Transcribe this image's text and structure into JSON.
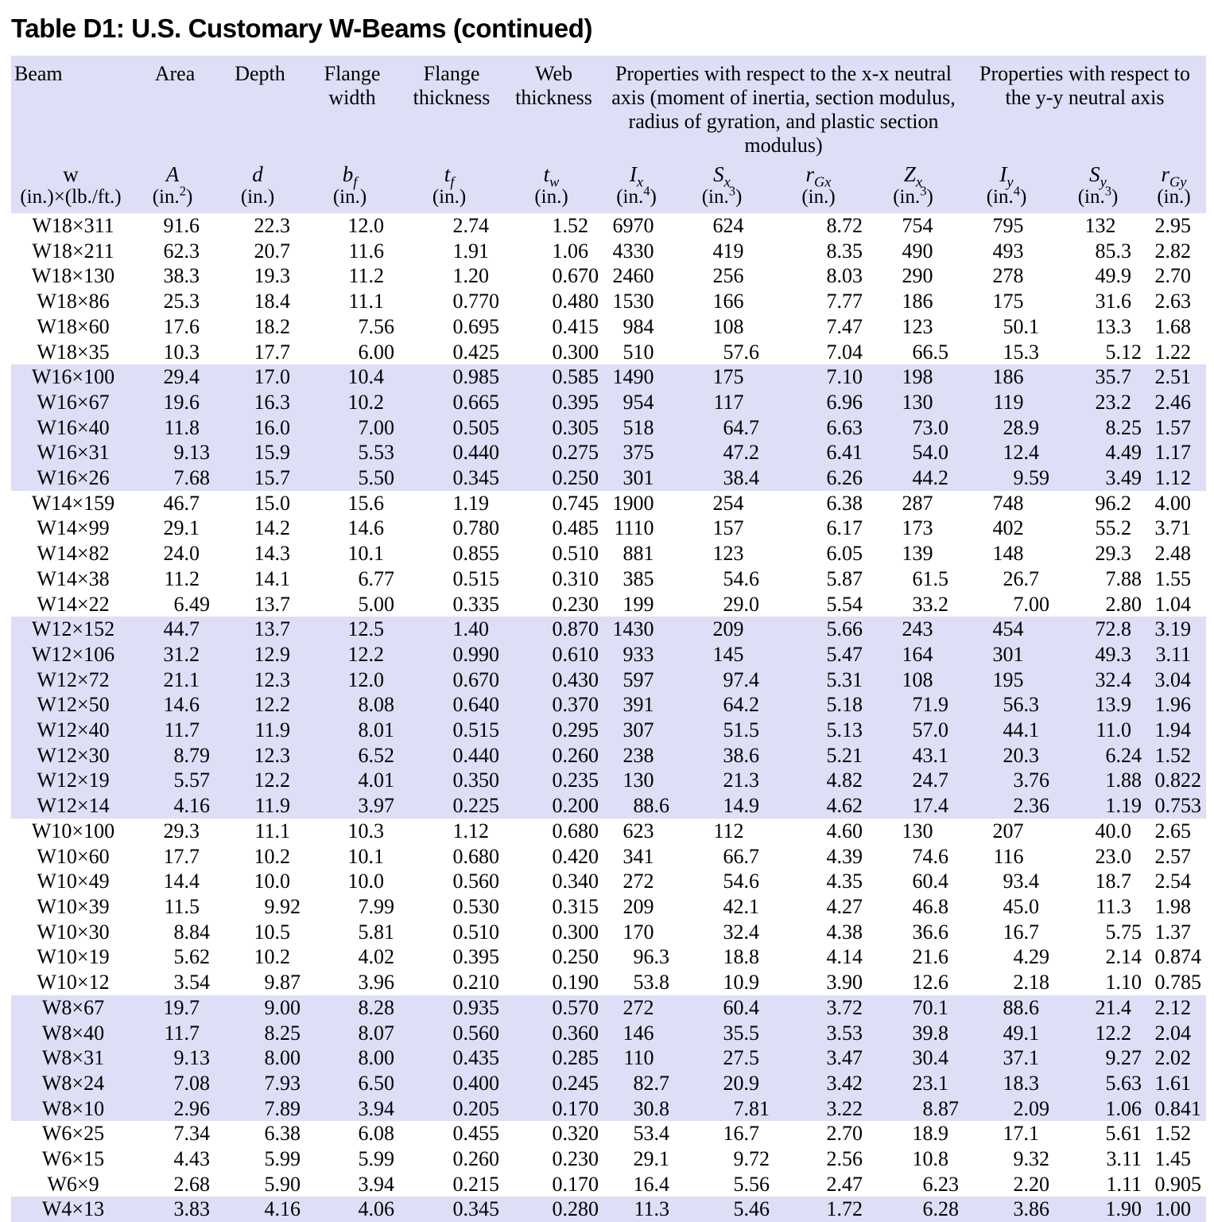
{
  "title": "Table D1: U.S. Customary W-Beams (continued)",
  "colors": {
    "band": "#dedef6",
    "text": "#000000",
    "page_bg": "#ffffff"
  },
  "table": {
    "group_headers": {
      "xx": "Properties with respect to the x-x neutral axis (moment of inertia, section modulus, radius of gyration, and plastic section modulus)",
      "yy": "Properties with respect to the y-y neutral axis"
    },
    "columns": [
      {
        "label": "Beam",
        "sym": "w",
        "italic": false,
        "sub": "",
        "unit_pre": "(in.)×(lb./ft.)",
        "unit_sup": "",
        "unit_post": ""
      },
      {
        "label": "Area",
        "sym": "A",
        "italic": true,
        "sub": "",
        "unit_pre": "(in.",
        "unit_sup": "2",
        "unit_post": ")"
      },
      {
        "label": "Depth",
        "sym": "d",
        "italic": true,
        "sub": "",
        "unit_pre": "(in.)",
        "unit_sup": "",
        "unit_post": ""
      },
      {
        "label": "Flange width",
        "sym": "b",
        "italic": true,
        "sub": "f",
        "unit_pre": "(in.)",
        "unit_sup": "",
        "unit_post": ""
      },
      {
        "label": "Flange thickness",
        "sym": "t",
        "italic": true,
        "sub": "f",
        "unit_pre": "(in.)",
        "unit_sup": "",
        "unit_post": ""
      },
      {
        "label": "Web thickness",
        "sym": "t",
        "italic": true,
        "sub": "w",
        "unit_pre": "(in.)",
        "unit_sup": "",
        "unit_post": ""
      },
      {
        "label": "",
        "sym": "I",
        "italic": true,
        "sub": "x",
        "unit_pre": "(in.",
        "unit_sup": "4",
        "unit_post": ")"
      },
      {
        "label": "",
        "sym": "S",
        "italic": true,
        "sub": "x",
        "unit_pre": "(in.",
        "unit_sup": "3",
        "unit_post": ")"
      },
      {
        "label": "",
        "sym": "r",
        "italic": true,
        "sub": "Gx",
        "unit_pre": "(in.)",
        "unit_sup": "",
        "unit_post": ""
      },
      {
        "label": "",
        "sym": "Z",
        "italic": true,
        "sub": "x",
        "unit_pre": "(in.",
        "unit_sup": "3",
        "unit_post": ")"
      },
      {
        "label": "",
        "sym": "I",
        "italic": true,
        "sub": "y",
        "unit_pre": "(in.",
        "unit_sup": "4",
        "unit_post": ")"
      },
      {
        "label": "",
        "sym": "S",
        "italic": true,
        "sub": "y",
        "unit_pre": "(in.",
        "unit_sup": "3",
        "unit_post": ")"
      },
      {
        "label": "",
        "sym": "r",
        "italic": true,
        "sub": "Gy",
        "unit_pre": "(in.)",
        "unit_sup": "",
        "unit_post": ""
      }
    ],
    "shaded_prefixes": [
      "W16",
      "W12",
      "W8",
      "W4"
    ],
    "rows": [
      [
        "W18×311",
        "91.6",
        "22.3",
        "12.0",
        "2.74",
        "1.52",
        "6970",
        "624",
        "8.72",
        "754",
        "795",
        "132",
        "2.95"
      ],
      [
        "W18×211",
        "62.3",
        "20.7",
        "11.6",
        "1.91",
        "1.06",
        "4330",
        "419",
        "8.35",
        "490",
        "493",
        "85.3",
        "2.82"
      ],
      [
        "W18×130",
        "38.3",
        "19.3",
        "11.2",
        "1.20",
        "0.670",
        "2460",
        "256",
        "8.03",
        "290",
        "278",
        "49.9",
        "2.70"
      ],
      [
        "W18×86",
        "25.3",
        "18.4",
        "11.1",
        "0.770",
        "0.480",
        "1530",
        "166",
        "7.77",
        "186",
        "175",
        "31.6",
        "2.63"
      ],
      [
        "W18×60",
        "17.6",
        "18.2",
        "7.56",
        "0.695",
        "0.415",
        "984",
        "108",
        "7.47",
        "123",
        "50.1",
        "13.3",
        "1.68"
      ],
      [
        "W18×35",
        "10.3",
        "17.7",
        "6.00",
        "0.425",
        "0.300",
        "510",
        "57.6",
        "7.04",
        "66.5",
        "15.3",
        "5.12",
        "1.22"
      ],
      [
        "W16×100",
        "29.4",
        "17.0",
        "10.4",
        "0.985",
        "0.585",
        "1490",
        "175",
        "7.10",
        "198",
        "186",
        "35.7",
        "2.51"
      ],
      [
        "W16×67",
        "19.6",
        "16.3",
        "10.2",
        "0.665",
        "0.395",
        "954",
        "117",
        "6.96",
        "130",
        "119",
        "23.2",
        "2.46"
      ],
      [
        "W16×40",
        "11.8",
        "16.0",
        "7.00",
        "0.505",
        "0.305",
        "518",
        "64.7",
        "6.63",
        "73.0",
        "28.9",
        "8.25",
        "1.57"
      ],
      [
        "W16×31",
        "9.13",
        "15.9",
        "5.53",
        "0.440",
        "0.275",
        "375",
        "47.2",
        "6.41",
        "54.0",
        "12.4",
        "4.49",
        "1.17"
      ],
      [
        "W16×26",
        "7.68",
        "15.7",
        "5.50",
        "0.345",
        "0.250",
        "301",
        "38.4",
        "6.26",
        "44.2",
        "9.59",
        "3.49",
        "1.12"
      ],
      [
        "W14×159",
        "46.7",
        "15.0",
        "15.6",
        "1.19",
        "0.745",
        "1900",
        "254",
        "6.38",
        "287",
        "748",
        "96.2",
        "4.00"
      ],
      [
        "W14×99",
        "29.1",
        "14.2",
        "14.6",
        "0.780",
        "0.485",
        "1110",
        "157",
        "6.17",
        "173",
        "402",
        "55.2",
        "3.71"
      ],
      [
        "W14×82",
        "24.0",
        "14.3",
        "10.1",
        "0.855",
        "0.510",
        "881",
        "123",
        "6.05",
        "139",
        "148",
        "29.3",
        "2.48"
      ],
      [
        "W14×38",
        "11.2",
        "14.1",
        "6.77",
        "0.515",
        "0.310",
        "385",
        "54.6",
        "5.87",
        "61.5",
        "26.7",
        "7.88",
        "1.55"
      ],
      [
        "W14×22",
        "6.49",
        "13.7",
        "5.00",
        "0.335",
        "0.230",
        "199",
        "29.0",
        "5.54",
        "33.2",
        "7.00",
        "2.80",
        "1.04"
      ],
      [
        "W12×152",
        "44.7",
        "13.7",
        "12.5",
        "1.40",
        "0.870",
        "1430",
        "209",
        "5.66",
        "243",
        "454",
        "72.8",
        "3.19"
      ],
      [
        "W12×106",
        "31.2",
        "12.9",
        "12.2",
        "0.990",
        "0.610",
        "933",
        "145",
        "5.47",
        "164",
        "301",
        "49.3",
        "3.11"
      ],
      [
        "W12×72",
        "21.1",
        "12.3",
        "12.0",
        "0.670",
        "0.430",
        "597",
        "97.4",
        "5.31",
        "108",
        "195",
        "32.4",
        "3.04"
      ],
      [
        "W12×50",
        "14.6",
        "12.2",
        "8.08",
        "0.640",
        "0.370",
        "391",
        "64.2",
        "5.18",
        "71.9",
        "56.3",
        "13.9",
        "1.96"
      ],
      [
        "W12×40",
        "11.7",
        "11.9",
        "8.01",
        "0.515",
        "0.295",
        "307",
        "51.5",
        "5.13",
        "57.0",
        "44.1",
        "11.0",
        "1.94"
      ],
      [
        "W12×30",
        "8.79",
        "12.3",
        "6.52",
        "0.440",
        "0.260",
        "238",
        "38.6",
        "5.21",
        "43.1",
        "20.3",
        "6.24",
        "1.52"
      ],
      [
        "W12×19",
        "5.57",
        "12.2",
        "4.01",
        "0.350",
        "0.235",
        "130",
        "21.3",
        "4.82",
        "24.7",
        "3.76",
        "1.88",
        "0.822"
      ],
      [
        "W12×14",
        "4.16",
        "11.9",
        "3.97",
        "0.225",
        "0.200",
        "88.6",
        "14.9",
        "4.62",
        "17.4",
        "2.36",
        "1.19",
        "0.753"
      ],
      [
        "W10×100",
        "29.3",
        "11.1",
        "10.3",
        "1.12",
        "0.680",
        "623",
        "112",
        "4.60",
        "130",
        "207",
        "40.0",
        "2.65"
      ],
      [
        "W10×60",
        "17.7",
        "10.2",
        "10.1",
        "0.680",
        "0.420",
        "341",
        "66.7",
        "4.39",
        "74.6",
        "116",
        "23.0",
        "2.57"
      ],
      [
        "W10×49",
        "14.4",
        "10.0",
        "10.0",
        "0.560",
        "0.340",
        "272",
        "54.6",
        "4.35",
        "60.4",
        "93.4",
        "18.7",
        "2.54"
      ],
      [
        "W10×39",
        "11.5",
        "9.92",
        "7.99",
        "0.530",
        "0.315",
        "209",
        "42.1",
        "4.27",
        "46.8",
        "45.0",
        "11.3",
        "1.98"
      ],
      [
        "W10×30",
        "8.84",
        "10.5",
        "5.81",
        "0.510",
        "0.300",
        "170",
        "32.4",
        "4.38",
        "36.6",
        "16.7",
        "5.75",
        "1.37"
      ],
      [
        "W10×19",
        "5.62",
        "10.2",
        "4.02",
        "0.395",
        "0.250",
        "96.3",
        "18.8",
        "4.14",
        "21.6",
        "4.29",
        "2.14",
        "0.874"
      ],
      [
        "W10×12",
        "3.54",
        "9.87",
        "3.96",
        "0.210",
        "0.190",
        "53.8",
        "10.9",
        "3.90",
        "12.6",
        "2.18",
        "1.10",
        "0.785"
      ],
      [
        "W8×67",
        "19.7",
        "9.00",
        "8.28",
        "0.935",
        "0.570",
        "272",
        "60.4",
        "3.72",
        "70.1",
        "88.6",
        "21.4",
        "2.12"
      ],
      [
        "W8×40",
        "11.7",
        "8.25",
        "8.07",
        "0.560",
        "0.360",
        "146",
        "35.5",
        "3.53",
        "39.8",
        "49.1",
        "12.2",
        "2.04"
      ],
      [
        "W8×31",
        "9.13",
        "8.00",
        "8.00",
        "0.435",
        "0.285",
        "110",
        "27.5",
        "3.47",
        "30.4",
        "37.1",
        "9.27",
        "2.02"
      ],
      [
        "W8×24",
        "7.08",
        "7.93",
        "6.50",
        "0.400",
        "0.245",
        "82.7",
        "20.9",
        "3.42",
        "23.1",
        "18.3",
        "5.63",
        "1.61"
      ],
      [
        "W8×10",
        "2.96",
        "7.89",
        "3.94",
        "0.205",
        "0.170",
        "30.8",
        "7.81",
        "3.22",
        "8.87",
        "2.09",
        "1.06",
        "0.841"
      ],
      [
        "W6×25",
        "7.34",
        "6.38",
        "6.08",
        "0.455",
        "0.320",
        "53.4",
        "16.7",
        "2.70",
        "18.9",
        "17.1",
        "5.61",
        "1.52"
      ],
      [
        "W6×15",
        "4.43",
        "5.99",
        "5.99",
        "0.260",
        "0.230",
        "29.1",
        "9.72",
        "2.56",
        "10.8",
        "9.32",
        "3.11",
        "1.45"
      ],
      [
        "W6×9",
        "2.68",
        "5.90",
        "3.94",
        "0.215",
        "0.170",
        "16.4",
        "5.56",
        "2.47",
        "6.23",
        "2.20",
        "1.11",
        "0.905"
      ],
      [
        "W4×13",
        "3.83",
        "4.16",
        "4.06",
        "0.345",
        "0.280",
        "11.3",
        "5.46",
        "1.72",
        "6.28",
        "3.86",
        "1.90",
        "1.00"
      ]
    ]
  }
}
